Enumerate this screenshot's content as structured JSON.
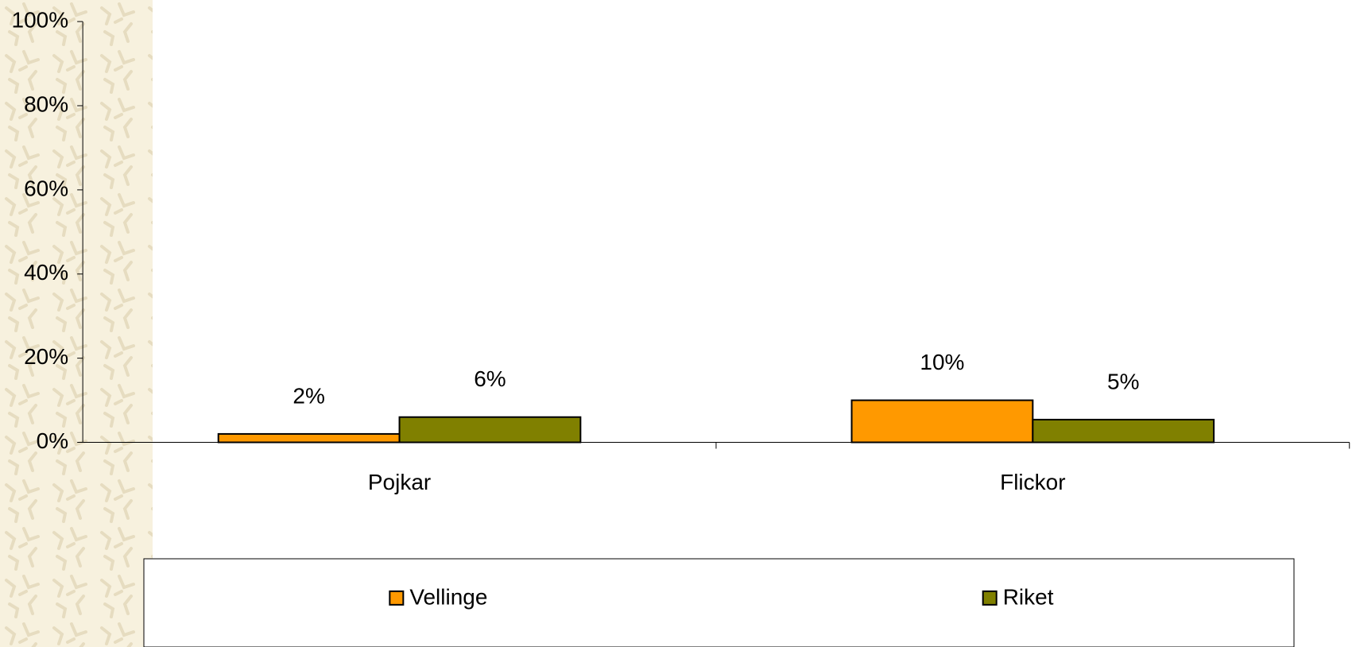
{
  "chart_data": {
    "type": "bar",
    "categories": [
      "Pojkar",
      "Flickor"
    ],
    "series": [
      {
        "name": "Vellinge",
        "color": "#ff9900",
        "values": [
          2,
          10
        ],
        "value_labels": [
          "2%",
          "10%"
        ]
      },
      {
        "name": "Riket",
        "color": "#808000",
        "values": [
          6,
          5.4
        ],
        "value_labels": [
          "6%",
          "5%"
        ]
      }
    ],
    "ylim": [
      0,
      100
    ],
    "yticks": [
      {
        "value": 0,
        "label": "0%"
      },
      {
        "value": 20,
        "label": "20%"
      },
      {
        "value": 40,
        "label": "40%"
      },
      {
        "value": 60,
        "label": "60%"
      },
      {
        "value": 80,
        "label": "80%"
      },
      {
        "value": 100,
        "label": "100%"
      }
    ],
    "legend": "bottom"
  }
}
